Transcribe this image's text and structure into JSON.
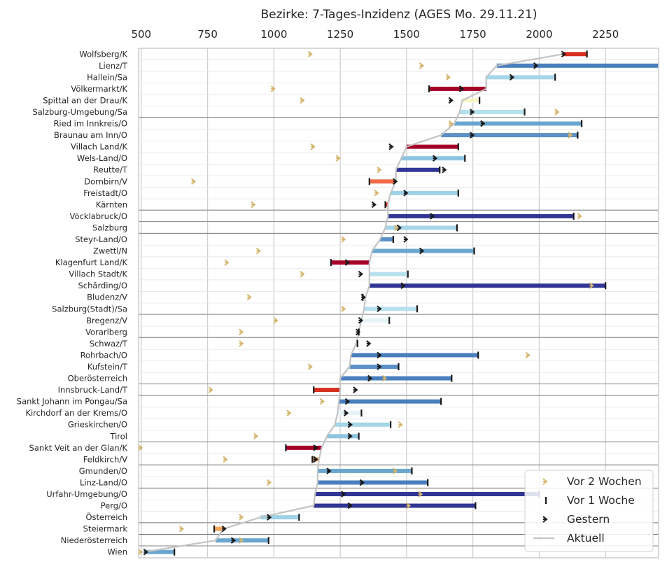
{
  "chart_data": {
    "type": "line",
    "title": "Bezirke: 7-Tages-Inzidenz (AGES Mo. 29.11.21)",
    "xlabel": "",
    "ylabel": "",
    "xlim": [
      490,
      2450
    ],
    "xaxis_position": "top",
    "xticks": [
      500,
      750,
      1000,
      1250,
      1500,
      1750,
      2000,
      2250
    ],
    "grid": true,
    "legend_position": "lower-right",
    "legend": [
      {
        "key": "vor2w",
        "label": "Vor 2 Wochen"
      },
      {
        "key": "vor1w",
        "label": "Vor 1 Woche"
      },
      {
        "key": "gestern",
        "label": "Gestern"
      },
      {
        "key": "aktuell",
        "label": "Aktuell"
      }
    ],
    "colors": {
      "vor2w": "#d4b46a",
      "tick": "#1a1a1a",
      "aktuell_line": "#c4c4c4",
      "grid": "#cfcfcf",
      "frame": "#cccccc"
    },
    "rows": [
      {
        "name": "Wolfsberg/K",
        "aktuell": 2090,
        "gestern": 2095,
        "vor1w": 2180,
        "vor2w": 1140,
        "color": "#d7301f"
      },
      {
        "name": "Lienz/T",
        "aktuell": 1840,
        "gestern": 1990,
        "vor1w": 2600,
        "vor2w": 1560,
        "color": "#4a7fbe"
      },
      {
        "name": "Hallein/Sa",
        "aktuell": 1800,
        "gestern": 1900,
        "vor1w": 2060,
        "vor2w": 1660,
        "color": "#a5d5e8"
      },
      {
        "name": "Völkermarkt/K",
        "aktuell": 1800,
        "gestern": 1710,
        "vor1w": 1585,
        "vor2w": 1000,
        "color": "#a50026"
      },
      {
        "name": "Spittal an der Drau/K",
        "aktuell": 1710,
        "gestern": 1670,
        "vor1w": 1775,
        "vor2w": 1110,
        "color": "#f7f5c8"
      },
      {
        "name": "Salzburg-Umgebung/Sa",
        "aktuell": 1700,
        "gestern": 1750,
        "vor1w": 1945,
        "vor2w": 2070,
        "color": "#b6e0ee"
      },
      {
        "name": "Ried im Innkreis/O",
        "aktuell": 1680,
        "gestern": 1790,
        "vor1w": 2160,
        "vor2w": 1670,
        "color": "#6aa6d0"
      },
      {
        "name": "Braunau am Inn/O",
        "aktuell": 1630,
        "gestern": 1750,
        "vor1w": 2145,
        "vor2w": 2120,
        "color": "#5b91c6"
      },
      {
        "name": "Villach Land/K",
        "aktuell": 1500,
        "gestern": 1445,
        "vor1w": 1695,
        "vor2w": 1150,
        "color": "#a50026"
      },
      {
        "name": "Wels-Land/O",
        "aktuell": 1480,
        "gestern": 1610,
        "vor1w": 1720,
        "vor2w": 1245,
        "color": "#8ec4e0"
      },
      {
        "name": "Reutte/T",
        "aktuell": 1460,
        "gestern": 1645,
        "vor1w": 1625,
        "vor2w": 1400,
        "color": "#313695"
      },
      {
        "name": "Dornbirn/V",
        "aktuell": 1460,
        "gestern": 1460,
        "vor1w": 1360,
        "vor2w": 700,
        "color": "#f06b48"
      },
      {
        "name": "Freistadt/O",
        "aktuell": 1440,
        "gestern": 1500,
        "vor1w": 1695,
        "vor2w": 1390,
        "color": "#9dd2e6"
      },
      {
        "name": "Kärnten",
        "aktuell": 1430,
        "gestern": 1380,
        "vor1w": 1420,
        "vor2w": 925,
        "color": "#d7301f"
      },
      {
        "name": "Vöcklabruck/O",
        "aktuell": 1430,
        "gestern": 1600,
        "vor1w": 2130,
        "vor2w": 2155,
        "color": "#313695"
      },
      {
        "name": "Salzburg",
        "aktuell": 1420,
        "gestern": 1475,
        "vor1w": 1690,
        "vor2w": 1465,
        "color": "#a5d5e8"
      },
      {
        "name": "Steyr-Land/O",
        "aktuell": 1400,
        "gestern": 1500,
        "vor1w": 1450,
        "vor2w": 1265,
        "color": "#5b91c6"
      },
      {
        "name": "Zwettl/N",
        "aktuell": 1370,
        "gestern": 1560,
        "vor1w": 1755,
        "vor2w": 945,
        "color": "#6aa6d0"
      },
      {
        "name": "Klagenfurt Land/K",
        "aktuell": 1360,
        "gestern": 1280,
        "vor1w": 1215,
        "vor2w": 825,
        "color": "#a50026"
      },
      {
        "name": "Villach Stadt/K",
        "aktuell": 1360,
        "gestern": 1330,
        "vor1w": 1505,
        "vor2w": 1110,
        "color": "#b6e0ee"
      },
      {
        "name": "Schärding/O",
        "aktuell": 1360,
        "gestern": 1490,
        "vor1w": 2250,
        "vor2w": 2200,
        "color": "#313695"
      },
      {
        "name": "Bludenz/V",
        "aktuell": 1345,
        "gestern": 1340,
        "vor1w": 1335,
        "vor2w": 910,
        "color": "#f7f5c8"
      },
      {
        "name": "Salzburg(Stadt)/Sa",
        "aktuell": 1340,
        "gestern": 1400,
        "vor1w": 1540,
        "vor2w": 1265,
        "color": "#b6e0ee"
      },
      {
        "name": "Bregenz/V",
        "aktuell": 1330,
        "gestern": 1330,
        "vor1w": 1435,
        "vor2w": 1010,
        "color": "#e6f4f7"
      },
      {
        "name": "Vorarlberg",
        "aktuell": 1320,
        "gestern": 1320,
        "vor1w": 1320,
        "vor2w": 880,
        "color": "#f7f5c8"
      },
      {
        "name": "Schwaz/T",
        "aktuell": 1310,
        "gestern": 1360,
        "vor1w": 1315,
        "vor2w": 880,
        "color": "#b6e0ee"
      },
      {
        "name": "Rohrbach/O",
        "aktuell": 1290,
        "gestern": 1400,
        "vor1w": 1770,
        "vor2w": 1960,
        "color": "#4a7fbe"
      },
      {
        "name": "Kufstein/T",
        "aktuell": 1285,
        "gestern": 1400,
        "vor1w": 1470,
        "vor2w": 1140,
        "color": "#5b91c6"
      },
      {
        "name": "Oberösterreich",
        "aktuell": 1250,
        "gestern": 1365,
        "vor1w": 1670,
        "vor2w": 1420,
        "color": "#4a7fbe"
      },
      {
        "name": "Innsbruck-Land/T",
        "aktuell": 1250,
        "gestern": 1310,
        "vor1w": 1150,
        "vor2w": 765,
        "color": "#d7301f"
      },
      {
        "name": "Sankt Johann im Pongau/Sa",
        "aktuell": 1245,
        "gestern": 1280,
        "vor1w": 1630,
        "vor2w": 1185,
        "color": "#4a7fbe"
      },
      {
        "name": "Kirchdorf an der Krems/O",
        "aktuell": 1240,
        "gestern": 1275,
        "vor1w": 1330,
        "vor2w": 1060,
        "color": "#e6f4f7"
      },
      {
        "name": "Grieskirchen/O",
        "aktuell": 1230,
        "gestern": 1290,
        "vor1w": 1440,
        "vor2w": 1480,
        "color": "#a5d5e8"
      },
      {
        "name": "Tirol",
        "aktuell": 1200,
        "gestern": 1290,
        "vor1w": 1320,
        "vor2w": 935,
        "color": "#8ec4e0"
      },
      {
        "name": "Sankt Veit an der Glan/K",
        "aktuell": 1180,
        "gestern": 1160,
        "vor1w": 1045,
        "vor2w": 500,
        "color": "#a50026"
      },
      {
        "name": "Feldkirch/V",
        "aktuell": 1170,
        "gestern": 1160,
        "vor1w": 1145,
        "vor2w": 820,
        "color": "#f6a65a"
      },
      {
        "name": "Gmunden/O",
        "aktuell": 1165,
        "gestern": 1210,
        "vor1w": 1520,
        "vor2w": 1460,
        "color": "#6aa6d0"
      },
      {
        "name": "Linz-Land/O",
        "aktuell": 1165,
        "gestern": 1335,
        "vor1w": 1580,
        "vor2w": 985,
        "color": "#4a7fbe"
      },
      {
        "name": "Urfahr-Umgebung/O",
        "aktuell": 1155,
        "gestern": 1265,
        "vor1w": 2000,
        "vor2w": 1555,
        "color": "#313695"
      },
      {
        "name": "Perg/O",
        "aktuell": 1150,
        "gestern": 1290,
        "vor1w": 1760,
        "vor2w": 1510,
        "color": "#313695"
      },
      {
        "name": "Österreich",
        "aktuell": 950,
        "gestern": 985,
        "vor1w": 1095,
        "vor2w": 880,
        "color": "#9dd2e6"
      },
      {
        "name": "Steiermark",
        "aktuell": 810,
        "gestern": 815,
        "vor1w": 775,
        "vor2w": 655,
        "color": "#f6a65a"
      },
      {
        "name": "Niederösterreich",
        "aktuell": 780,
        "gestern": 850,
        "vor1w": 980,
        "vor2w": 880,
        "color": "#6aa6d0"
      },
      {
        "name": "Wien",
        "aktuell": 510,
        "gestern": 520,
        "vor1w": 625,
        "vor2w": 500,
        "color": "#6aa6d0"
      }
    ]
  }
}
